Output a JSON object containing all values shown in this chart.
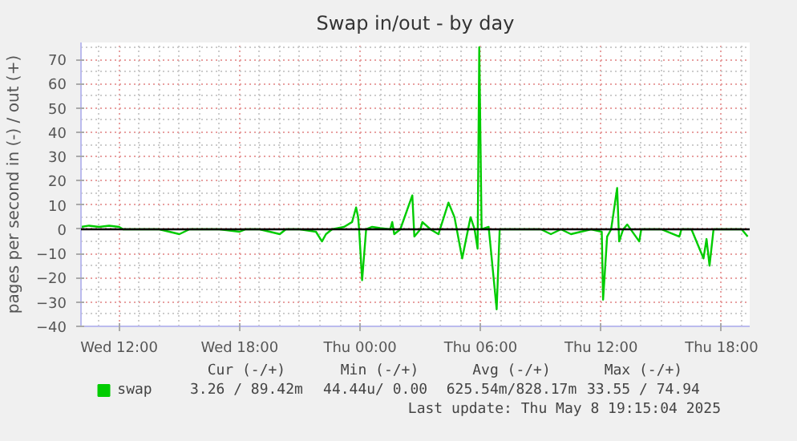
{
  "chart_data": {
    "type": "line",
    "title": "Swap in/out - by day",
    "ylabel": "pages per second in (-) / out (+)",
    "x": [
      "2025-05-07T10:06",
      "2025-05-07T10:30",
      "2025-05-07T11:00",
      "2025-05-07T11:30",
      "2025-05-07T12:00",
      "2025-05-07T12:12",
      "2025-05-07T13:00",
      "2025-05-07T14:00",
      "2025-05-07T14:30",
      "2025-05-07T15:00",
      "2025-05-07T15:30",
      "2025-05-07T16:00",
      "2025-05-07T17:00",
      "2025-05-07T18:00",
      "2025-05-07T18:18",
      "2025-05-07T19:00",
      "2025-05-07T20:00",
      "2025-05-07T20:18",
      "2025-05-07T21:00",
      "2025-05-07T21:48",
      "2025-05-07T22:06",
      "2025-05-07T22:18",
      "2025-05-07T22:36",
      "2025-05-07T23:12",
      "2025-05-07T23:36",
      "2025-05-07T23:48",
      "2025-05-07T23:54",
      "2025-05-07T23:57",
      "2025-05-08T00:06",
      "2025-05-08T00:18",
      "2025-05-08T00:36",
      "2025-05-08T01:00",
      "2025-05-08T01:30",
      "2025-05-08T01:36",
      "2025-05-08T01:42",
      "2025-05-08T02:00",
      "2025-05-08T02:36",
      "2025-05-08T02:42",
      "2025-05-08T03:00",
      "2025-05-08T03:06",
      "2025-05-08T03:30",
      "2025-05-08T03:54",
      "2025-05-08T04:24",
      "2025-05-08T04:42",
      "2025-05-08T05:05",
      "2025-05-08T05:30",
      "2025-05-08T05:42",
      "2025-05-08T05:51",
      "2025-05-08T05:56",
      "2025-05-08T06:03",
      "2025-05-08T06:24",
      "2025-05-08T06:48",
      "2025-05-08T06:57",
      "2025-05-08T07:30",
      "2025-05-08T08:00",
      "2025-05-08T09:00",
      "2025-05-08T09:30",
      "2025-05-08T10:00",
      "2025-05-08T10:30",
      "2025-05-08T11:00",
      "2025-05-08T11:30",
      "2025-05-08T12:02",
      "2025-05-08T12:06",
      "2025-05-08T12:18",
      "2025-05-08T12:30",
      "2025-05-08T12:48",
      "2025-05-08T12:54",
      "2025-05-08T13:06",
      "2025-05-08T13:18",
      "2025-05-08T13:54",
      "2025-05-08T14:00",
      "2025-05-08T15:00",
      "2025-05-08T15:54",
      "2025-05-08T16:00",
      "2025-05-08T16:30",
      "2025-05-08T17:06",
      "2025-05-08T17:15",
      "2025-05-08T17:24",
      "2025-05-08T17:36",
      "2025-05-08T18:00",
      "2025-05-08T19:00",
      "2025-05-08T19:18"
    ],
    "series": [
      {
        "name": "swap",
        "color": "#00cc00",
        "values": [
          1,
          1.5,
          1,
          1.5,
          1,
          0,
          0,
          0,
          -1,
          -2,
          0,
          0,
          0,
          -1,
          0,
          0,
          -2,
          0,
          0,
          -1,
          -5,
          -2,
          0,
          1,
          3,
          9,
          5,
          0,
          -21,
          0,
          1,
          0.5,
          0,
          3,
          -2,
          0,
          14,
          -3,
          0,
          3,
          0,
          -2,
          11,
          5,
          -12,
          5,
          0,
          -8,
          75,
          0,
          1,
          -33,
          0,
          0,
          0,
          0,
          -2,
          0,
          -2,
          -1,
          0,
          -1,
          -29,
          -3,
          0,
          17,
          -5,
          0,
          2,
          -5,
          0,
          0,
          -3,
          0,
          0,
          -12,
          -4,
          -15,
          0,
          0,
          0,
          -3
        ]
      }
    ],
    "xlim": [
      "2025-05-07T10:06",
      "2025-05-08T19:24"
    ],
    "xticks": [
      {
        "value": "2025-05-07T12:00",
        "label": "Wed 12:00"
      },
      {
        "value": "2025-05-07T18:00",
        "label": "Wed 18:00"
      },
      {
        "value": "2025-05-08T00:00",
        "label": "Thu 00:00"
      },
      {
        "value": "2025-05-08T06:00",
        "label": "Thu 06:00"
      },
      {
        "value": "2025-05-08T12:00",
        "label": "Thu 12:00"
      },
      {
        "value": "2025-05-08T18:00",
        "label": "Thu 18:00"
      }
    ],
    "ylim": [
      -40,
      77
    ],
    "yticks": [
      -40,
      -30,
      -20,
      -10,
      0,
      10,
      20,
      30,
      40,
      50,
      60,
      70
    ],
    "ref_lines": [
      {
        "axis": "y",
        "value": 0,
        "color": "#000000"
      }
    ],
    "grid": true,
    "legend": "bottom",
    "annotations": [
      "Cur (-/+)",
      "Min (-/+)",
      "Avg (-/+)",
      "Max (-/+)",
      "3.26 / 89.42m",
      "44.44u/  0.00",
      "625.54m/828.17m",
      "33.55 / 74.94",
      "Last update: Thu May  8 19:15:04 2025"
    ]
  }
}
